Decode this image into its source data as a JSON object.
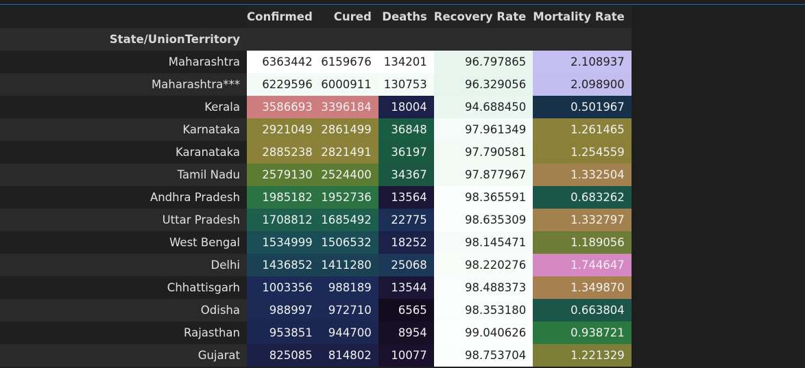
{
  "table": {
    "index_name": "State/UnionTerritory",
    "columns": [
      "Confirmed",
      "Cured",
      "Deaths",
      "Recovery Rate",
      "Mortality Rate"
    ],
    "rows": [
      {
        "state": "Maharashtra",
        "cells": [
          {
            "v": "6363442",
            "bg": "#ffffff",
            "light": true
          },
          {
            "v": "6159676",
            "bg": "#ffffff",
            "light": true
          },
          {
            "v": "134201",
            "bg": "#ffffff",
            "light": true
          },
          {
            "v": "96.797865",
            "bg": "#e8f6ef",
            "light": true
          },
          {
            "v": "2.108937",
            "bg": "#c5bff2",
            "light": true
          }
        ]
      },
      {
        "state": "Maharashtra***",
        "cells": [
          {
            "v": "6229596",
            "bg": "#f2fbf6",
            "light": true
          },
          {
            "v": "6000911",
            "bg": "#f2fbf6",
            "light": true
          },
          {
            "v": "130753",
            "bg": "#f5fcf8",
            "light": true
          },
          {
            "v": "96.329056",
            "bg": "#e6f5ee",
            "light": true
          },
          {
            "v": "2.098900",
            "bg": "#c3bdf0",
            "light": true
          }
        ]
      },
      {
        "state": "Kerala",
        "cells": [
          {
            "v": "3586693",
            "bg": "#cd7d7d",
            "light": false
          },
          {
            "v": "3396184",
            "bg": "#cd7d7d",
            "light": false
          },
          {
            "v": "18004",
            "bg": "#1b2148",
            "light": false
          },
          {
            "v": "94.688450",
            "bg": "#e9f7f0",
            "light": true
          },
          {
            "v": "0.501967",
            "bg": "#17314a",
            "light": false
          }
        ]
      },
      {
        "state": "Karnataka",
        "cells": [
          {
            "v": "2921049",
            "bg": "#8a8138",
            "light": false
          },
          {
            "v": "2861499",
            "bg": "#8a8138",
            "light": false
          },
          {
            "v": "36848",
            "bg": "#1a5c44",
            "light": false
          },
          {
            "v": "97.961349",
            "bg": "#f4fbf8",
            "light": true
          },
          {
            "v": "1.261465",
            "bg": "#8b8138",
            "light": false
          }
        ]
      },
      {
        "state": "Karanataka",
        "cells": [
          {
            "v": "2885238",
            "bg": "#8b8139",
            "light": false
          },
          {
            "v": "2821491",
            "bg": "#8b8139",
            "light": false
          },
          {
            "v": "36197",
            "bg": "#1a5a43",
            "light": false
          },
          {
            "v": "97.790581",
            "bg": "#f3fbf7",
            "light": true
          },
          {
            "v": "1.254559",
            "bg": "#8a8037",
            "light": false
          }
        ]
      },
      {
        "state": "Tamil Nadu",
        "cells": [
          {
            "v": "2579130",
            "bg": "#5c7b33",
            "light": false
          },
          {
            "v": "2524400",
            "bg": "#5c7b33",
            "light": false
          },
          {
            "v": "34367",
            "bg": "#1a5642",
            "light": false
          },
          {
            "v": "97.877967",
            "bg": "#f3fbf7",
            "light": true
          },
          {
            "v": "1.332504",
            "bg": "#a3814f",
            "light": false
          }
        ]
      },
      {
        "state": "Andhra Pradesh",
        "cells": [
          {
            "v": "1985182",
            "bg": "#2c7344",
            "light": false
          },
          {
            "v": "1952736",
            "bg": "#2c7344",
            "light": false
          },
          {
            "v": "13564",
            "bg": "#1b1636",
            "light": false
          },
          {
            "v": "98.365591",
            "bg": "#fafdfc",
            "light": true
          },
          {
            "v": "0.683262",
            "bg": "#1b5749",
            "light": false
          }
        ]
      },
      {
        "state": "Uttar Pradesh",
        "cells": [
          {
            "v": "1708812",
            "bg": "#1d5f4c",
            "light": false
          },
          {
            "v": "1685492",
            "bg": "#1d5f4c",
            "light": false
          },
          {
            "v": "22775",
            "bg": "#1b2f56",
            "light": false
          },
          {
            "v": "98.635309",
            "bg": "#fbfefd",
            "light": true
          },
          {
            "v": "1.332797",
            "bg": "#a3814f",
            "light": false
          }
        ]
      },
      {
        "state": "West Bengal",
        "cells": [
          {
            "v": "1534999",
            "bg": "#1a4d56",
            "light": false
          },
          {
            "v": "1506532",
            "bg": "#1a4d56",
            "light": false
          },
          {
            "v": "18252",
            "bg": "#1b2148",
            "light": false
          },
          {
            "v": "98.145471",
            "bg": "#f7fcfa",
            "light": true
          },
          {
            "v": "1.189056",
            "bg": "#6d7d37",
            "light": false
          }
        ]
      },
      {
        "state": "Delhi",
        "cells": [
          {
            "v": "1436852",
            "bg": "#1a4254",
            "light": false
          },
          {
            "v": "1411280",
            "bg": "#1a4254",
            "light": false
          },
          {
            "v": "25068",
            "bg": "#1c3858",
            "light": false
          },
          {
            "v": "98.220276",
            "bg": "#f8fdfa",
            "light": true
          },
          {
            "v": "1.744647",
            "bg": "#d688c2",
            "light": false
          }
        ]
      },
      {
        "state": "Chhattisgarh",
        "cells": [
          {
            "v": "1003356",
            "bg": "#1b2a56",
            "light": false
          },
          {
            "v": "988189",
            "bg": "#1b2a56",
            "light": false
          },
          {
            "v": "13544",
            "bg": "#1b1636",
            "light": false
          },
          {
            "v": "98.488373",
            "bg": "#fafdfc",
            "light": true
          },
          {
            "v": "1.349870",
            "bg": "#a6814f",
            "light": false
          }
        ]
      },
      {
        "state": "Odisha",
        "cells": [
          {
            "v": "988997",
            "bg": "#1b2954",
            "light": false
          },
          {
            "v": "972710",
            "bg": "#1b2954",
            "light": false
          },
          {
            "v": "6565",
            "bg": "#120a1d",
            "light": false
          },
          {
            "v": "98.353180",
            "bg": "#fafdfc",
            "light": true
          },
          {
            "v": "0.663804",
            "bg": "#1b5449",
            "light": false
          }
        ]
      },
      {
        "state": "Rajasthan",
        "cells": [
          {
            "v": "953851",
            "bg": "#1c2751",
            "light": false
          },
          {
            "v": "944700",
            "bg": "#1c2751",
            "light": false
          },
          {
            "v": "8954",
            "bg": "#170f26",
            "light": false
          },
          {
            "v": "99.040626",
            "bg": "#fdfefe",
            "light": true
          },
          {
            "v": "0.938721",
            "bg": "#2b7940",
            "light": false
          }
        ]
      },
      {
        "state": "Gujarat",
        "cells": [
          {
            "v": "825085",
            "bg": "#1c1f47",
            "light": false
          },
          {
            "v": "814802",
            "bg": "#1c1f47",
            "light": false
          },
          {
            "v": "10077",
            "bg": "#19112d",
            "light": false
          },
          {
            "v": "98.753704",
            "bg": "#fbfefd",
            "light": true
          },
          {
            "v": "1.221329",
            "bg": "#7c7d36",
            "light": false
          }
        ]
      }
    ]
  }
}
